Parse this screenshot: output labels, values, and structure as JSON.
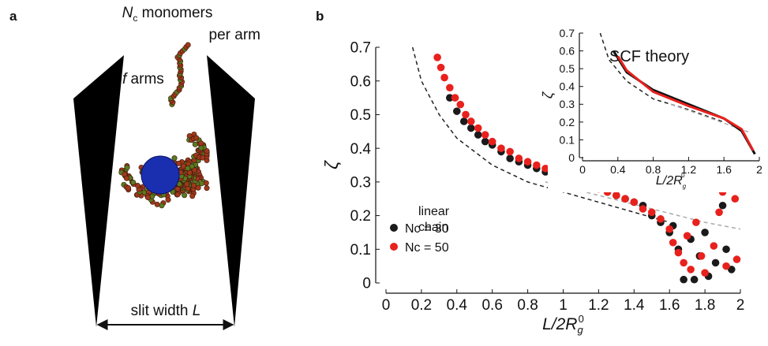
{
  "panel_labels": [
    "a",
    "b"
  ],
  "illustration": {
    "arm_label": {
      "symbol": "N",
      "sub": "c",
      "rest": " monomers",
      "line2": "per arm"
    },
    "arms_label": {
      "symbol": "f",
      "rest": " arms"
    },
    "slit_label": {
      "text": "slit width ",
      "symbol": "L"
    }
  },
  "chart_data": [
    {
      "type": "scatter",
      "xlabel": {
        "base": "L/2R",
        "sub": "g",
        "sup": "0"
      },
      "ylabel": "ζ",
      "xlim": [
        0,
        2
      ],
      "ylim": [
        0,
        0.7
      ],
      "xticks": [
        0,
        0.2,
        0.4,
        0.6,
        0.8,
        1,
        1.2,
        1.4,
        1.6,
        1.8,
        2
      ],
      "yticks": [
        0,
        0.1,
        0.2,
        0.3,
        0.4,
        0.5,
        0.6,
        0.7
      ],
      "legend": "lower left",
      "series": [
        {
          "name": "Nc = 30",
          "color": "#1a1a1a",
          "x": [
            0.36,
            0.4,
            0.44,
            0.48,
            0.52,
            0.56,
            0.6,
            0.65,
            0.7,
            0.75,
            0.8,
            0.85,
            0.9,
            0.95,
            1.0,
            1.05,
            1.1,
            1.2,
            1.25,
            1.3,
            1.35,
            1.4,
            1.45,
            1.5,
            1.55,
            1.6,
            1.62,
            1.65,
            1.68,
            1.72,
            1.74,
            1.77,
            1.8,
            1.82,
            1.86,
            1.9,
            1.92,
            1.95
          ],
          "values": [
            0.55,
            0.51,
            0.48,
            0.46,
            0.44,
            0.42,
            0.41,
            0.39,
            0.37,
            0.36,
            0.35,
            0.34,
            0.33,
            0.32,
            0.31,
            0.31,
            0.3,
            0.28,
            0.27,
            0.26,
            0.25,
            0.24,
            0.23,
            0.2,
            0.18,
            0.15,
            0.17,
            0.1,
            0.01,
            0.13,
            0.01,
            0.08,
            0.15,
            0.02,
            0.06,
            0.23,
            0.1,
            0.04
          ]
        },
        {
          "name": "Nc = 50",
          "color": "#e8211d",
          "x": [
            0.29,
            0.31,
            0.33,
            0.36,
            0.39,
            0.42,
            0.45,
            0.48,
            0.52,
            0.56,
            0.6,
            0.65,
            0.7,
            0.75,
            0.8,
            0.85,
            0.9,
            0.95,
            1.0,
            1.05,
            1.1,
            1.15,
            1.2,
            1.25,
            1.3,
            1.35,
            1.4,
            1.45,
            1.5,
            1.55,
            1.6,
            1.62,
            1.65,
            1.68,
            1.7,
            1.72,
            1.75,
            1.78,
            1.8,
            1.85,
            1.9,
            1.92,
            1.97,
            1.98,
            1.88
          ],
          "values": [
            0.67,
            0.64,
            0.61,
            0.58,
            0.55,
            0.53,
            0.5,
            0.48,
            0.46,
            0.44,
            0.42,
            0.4,
            0.39,
            0.37,
            0.36,
            0.35,
            0.34,
            0.33,
            0.32,
            0.31,
            0.3,
            0.29,
            0.28,
            0.27,
            0.26,
            0.25,
            0.24,
            0.22,
            0.21,
            0.19,
            0.16,
            0.12,
            0.09,
            0.06,
            0.14,
            0.04,
            0.18,
            0.08,
            0.03,
            0.11,
            0.27,
            0.05,
            0.25,
            0.07,
            0.21
          ]
        }
      ],
      "curves": [
        {
          "label_lines": [
            "linear",
            "chain"
          ],
          "color": "#222222",
          "dashed": true,
          "x": [
            0.15,
            0.2,
            0.3,
            0.4,
            0.6,
            0.8,
            1.0,
            1.2,
            1.4,
            1.6
          ],
          "values": [
            0.7,
            0.6,
            0.5,
            0.43,
            0.35,
            0.3,
            0.27,
            0.24,
            0.21,
            0.18
          ]
        },
        {
          "color": "#aaaaaa",
          "dashed": true,
          "x": [
            0.9,
            1.2,
            1.5,
            1.8,
            2.0
          ],
          "values": [
            0.3,
            0.26,
            0.22,
            0.18,
            0.16
          ]
        }
      ]
    },
    {
      "type": "line",
      "title": "SCF theory",
      "xlabel": {
        "base": "L/2R",
        "sub": "g",
        "sup": "0"
      },
      "ylabel": "ζ",
      "xlim": [
        0,
        2
      ],
      "ylim": [
        0,
        0.7
      ],
      "xticks": [
        0,
        0.4,
        0.8,
        1.2,
        1.6,
        2
      ],
      "yticks": [
        0,
        0.1,
        0.2,
        0.3,
        0.4,
        0.5,
        0.6,
        0.7
      ],
      "series": [
        {
          "color": "#222222",
          "dashed": true,
          "x": [
            0.2,
            0.3,
            0.5,
            0.8,
            1.2,
            1.6
          ],
          "values": [
            0.7,
            0.55,
            0.43,
            0.33,
            0.27,
            0.2
          ]
        },
        {
          "color": "#aaaaaa",
          "dashed": true,
          "x": [
            1.0,
            1.4,
            1.9
          ],
          "values": [
            0.3,
            0.23,
            0.14
          ]
        },
        {
          "color": "#111111",
          "x": [
            0.35,
            0.5,
            0.8,
            1.2,
            1.6,
            1.8,
            1.95
          ],
          "values": [
            0.6,
            0.48,
            0.38,
            0.3,
            0.22,
            0.15,
            0.02
          ]
        },
        {
          "color": "#e8211d",
          "x": [
            0.4,
            0.5,
            0.8,
            1.2,
            1.6,
            1.8,
            1.93
          ],
          "values": [
            0.57,
            0.49,
            0.37,
            0.29,
            0.22,
            0.16,
            0.04
          ]
        }
      ]
    }
  ]
}
